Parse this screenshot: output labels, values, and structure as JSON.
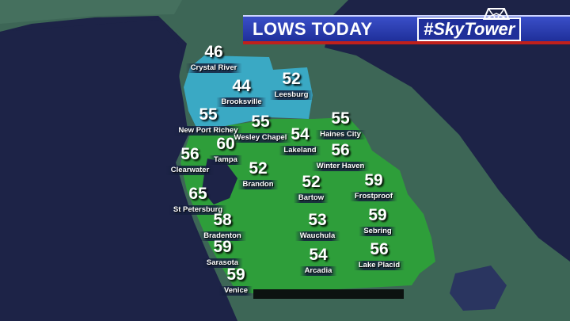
{
  "header": {
    "title": "LOWS TODAY",
    "brand": "#SkyTower"
  },
  "colors": {
    "water": "#1d2347",
    "land": "#3d6656",
    "cold_zone": "#3aa9c4",
    "warm_zone": "#2e9e3a",
    "banner": "#2a3db5",
    "banner_stripe": "#c0201c"
  },
  "units": "°F",
  "cities": [
    {
      "name": "Crystal River",
      "low": "46"
    },
    {
      "name": "Brooksville",
      "low": "44"
    },
    {
      "name": "Leesburg",
      "low": "52"
    },
    {
      "name": "New Port Richey",
      "low": "55"
    },
    {
      "name": "Wesley Chapel",
      "low": "55"
    },
    {
      "name": "Lakeland",
      "low": "54"
    },
    {
      "name": "Haines City",
      "low": "55"
    },
    {
      "name": "Winter Haven",
      "low": "56"
    },
    {
      "name": "Tampa",
      "low": "60"
    },
    {
      "name": "Clearwater",
      "low": "56"
    },
    {
      "name": "Brandon",
      "low": "52"
    },
    {
      "name": "Bartow",
      "low": "52"
    },
    {
      "name": "Frostproof",
      "low": "59"
    },
    {
      "name": "St Petersburg",
      "low": "65"
    },
    {
      "name": "Bradenton",
      "low": "58"
    },
    {
      "name": "Wauchula",
      "low": "53"
    },
    {
      "name": "Sebring",
      "low": "59"
    },
    {
      "name": "Sarasota",
      "low": "59"
    },
    {
      "name": "Arcadia",
      "low": "54"
    },
    {
      "name": "Lake Placid",
      "low": "56"
    },
    {
      "name": "Venice",
      "low": "59"
    }
  ]
}
